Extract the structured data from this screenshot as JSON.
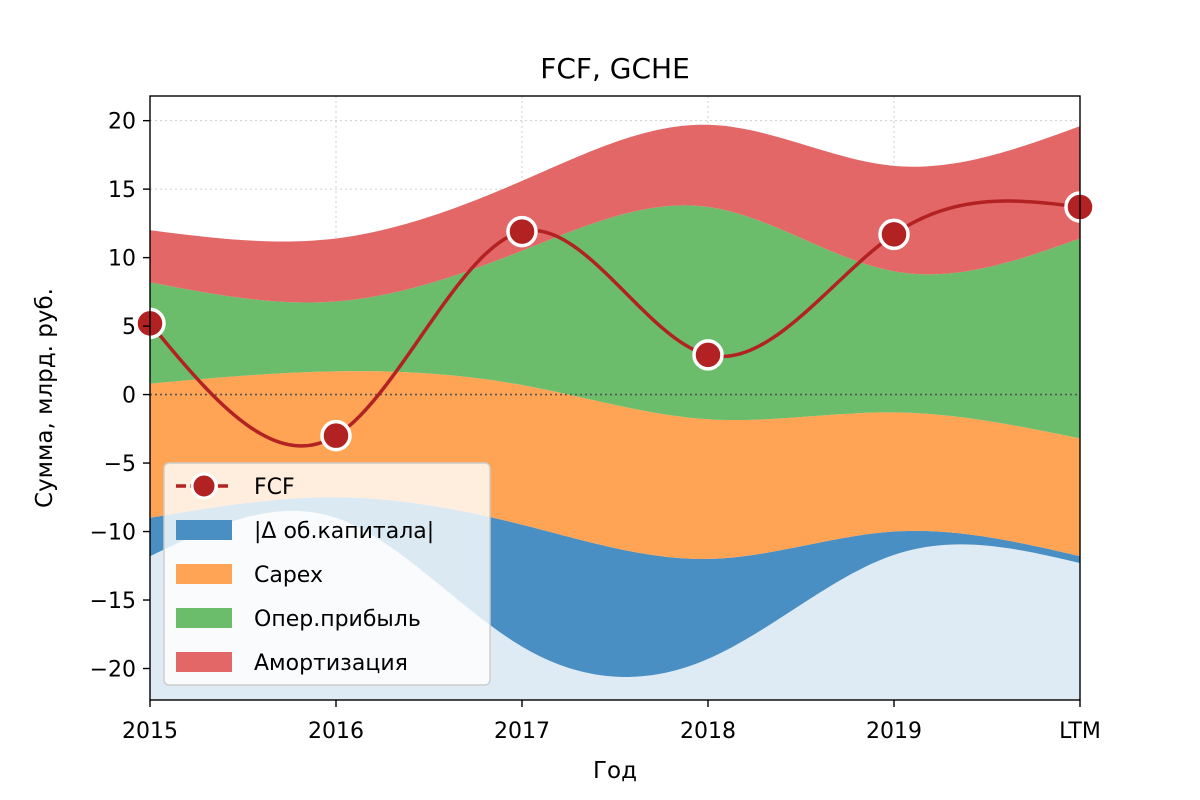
{
  "chart_data": {
    "type": "area",
    "title": "FCF, GCHE",
    "xlabel": "Год",
    "ylabel": "Сумма, млрд. руб.",
    "categories": [
      "2015",
      "2016",
      "2017",
      "2018",
      "2019",
      "LTM"
    ],
    "ylim": [
      -22.3,
      21.8
    ],
    "yticks": [
      20,
      15,
      10,
      5,
      0,
      -5,
      -10,
      -15,
      -20
    ],
    "ytick_labels": [
      "20",
      "15",
      "10",
      "5",
      "0",
      "−5",
      "−10",
      "−15",
      "−20"
    ],
    "grid": true,
    "legend_position": "lower-left",
    "zero_line": true,
    "bands": [
      {
        "name": "|Δ об.капитала|",
        "color": "#4a8fc3",
        "light_color": "#deeaf4",
        "lower": [
          -11.8,
          -9.0,
          -18.4,
          -19.3,
          -11.7,
          -12.3
        ],
        "upper": [
          -9.0,
          -7.5,
          -9.5,
          -12.0,
          -10.0,
          -11.8
        ]
      },
      {
        "name": "Capex",
        "color": "#ffa355",
        "lower": [
          -9.0,
          -7.5,
          -9.5,
          -12.0,
          -10.0,
          -11.8
        ],
        "upper": [
          0.8,
          1.7,
          0.7,
          -1.8,
          -1.3,
          -3.2
        ]
      },
      {
        "name": "Опер.прибыль",
        "color": "#6bbd6b",
        "lower": [
          0.8,
          1.7,
          0.7,
          -1.8,
          -1.3,
          -3.2
        ],
        "upper": [
          8.2,
          6.8,
          10.5,
          13.7,
          9.0,
          11.4
        ]
      },
      {
        "name": "Амортизация",
        "color": "#e36767",
        "lower": [
          8.2,
          6.8,
          10.5,
          13.7,
          9.0,
          11.4
        ],
        "upper": [
          12.0,
          11.4,
          15.6,
          19.7,
          16.7,
          19.6
        ]
      }
    ],
    "series": [
      {
        "name": "FCF",
        "color": "#b22222",
        "values": [
          5.2,
          -3.0,
          11.9,
          2.9,
          11.7,
          13.7
        ]
      }
    ]
  }
}
